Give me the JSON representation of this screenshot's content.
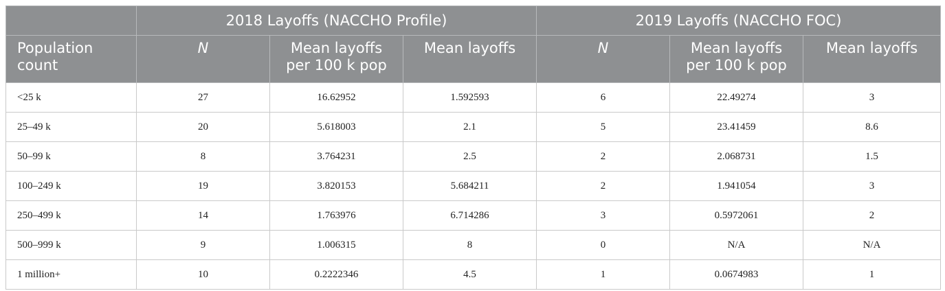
{
  "table": {
    "group_headers": [
      "2018 Layoffs (NACCHO Profile)",
      "2019 Layoffs (NACCHO FOC)"
    ],
    "columns": [
      "Population count",
      "N",
      "Mean layoffs per 100 k pop",
      "Mean layoffs",
      "N",
      "Mean layoffs per 100 k pop",
      "Mean layoffs"
    ],
    "rows": [
      [
        "<25 k",
        27,
        16.62952,
        1.592593,
        6,
        22.49274,
        3
      ],
      [
        "25–49 k",
        20,
        5.618003,
        2.1,
        5,
        23.41459,
        8.6
      ],
      [
        "50–99 k",
        8,
        3.764231,
        2.5,
        2,
        2.068731,
        1.5
      ],
      [
        "100–249 k",
        19,
        3.820153,
        5.684211,
        2,
        1.941054,
        3
      ],
      [
        "250–499 k",
        14,
        1.763976,
        6.714286,
        3,
        0.5972061,
        2
      ],
      [
        "500–999 k",
        9,
        1.006315,
        8,
        0,
        "N/A",
        "N/A"
      ],
      [
        "1 million+",
        10,
        0.2222346,
        4.5,
        1,
        0.0674983,
        1
      ]
    ]
  }
}
